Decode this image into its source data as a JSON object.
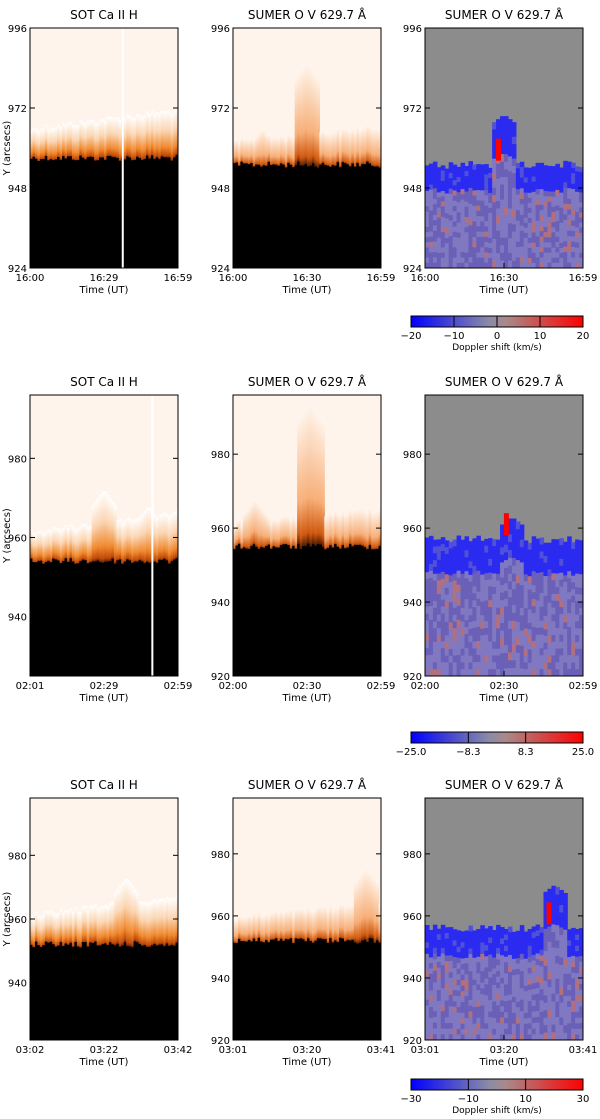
{
  "figure": {
    "colors": {
      "frame": "#000000",
      "background": "#ffffff",
      "doppler_blue": "#0000ff",
      "doppler_red": "#ff0000",
      "doppler_gray": "#8c8c8c",
      "intensity_dark": "#000000",
      "intensity_mid": "#e66a10",
      "intensity_light": "#fff4ec"
    }
  },
  "rows": [
    {
      "panels": [
        {
          "kind": "sot",
          "title": "SOT Ca II H",
          "ylabel": "Y (arcsecs)",
          "xlabel": "Time (UT)",
          "xticks": [
            "16:00",
            "16:29",
            "16:59"
          ],
          "yticks": [
            "924",
            "948",
            "972",
            "996"
          ],
          "chart_data": {
            "type": "heatmap",
            "ylim": [
              924,
              996
            ],
            "limb_y": 957,
            "jets": [
              {
                "t": 0.45,
                "peak_y": 965
              }
            ],
            "gap_t": 0.62
          }
        },
        {
          "kind": "sumer",
          "title": "SUMER O V 629.7 Å",
          "xlabel": "Time (UT)",
          "xticks": [
            "16:00",
            "16:30",
            "16:59"
          ],
          "yticks": [
            "924",
            "948",
            "972",
            "996"
          ],
          "chart_data": {
            "type": "heatmap",
            "ylim": [
              924,
              996
            ],
            "limb_y": 955,
            "jets": [
              {
                "t": 0.5,
                "peak_y": 986
              },
              {
                "t": 0.2,
                "peak_y": 966
              }
            ]
          }
        },
        {
          "kind": "doppler",
          "title": "SUMER O V 629.7 Å",
          "xlabel": "Time (UT)",
          "xticks": [
            "16:00",
            "16:30",
            "16:59"
          ],
          "yticks": [
            "924",
            "948",
            "972",
            "996"
          ],
          "chart_data": {
            "type": "heatmap",
            "ylim": [
              924,
              996
            ],
            "limb_y": 955,
            "bumps": [
              {
                "t": 0.5,
                "peak_y": 970
              }
            ]
          }
        }
      ],
      "colorbar": {
        "ticks": [
          "−20",
          "−10",
          "0",
          "10",
          "20"
        ],
        "label": "Doppler shift (km/s)",
        "range": [
          -20,
          20
        ]
      }
    },
    {
      "panels": [
        {
          "kind": "sot",
          "title": "SOT Ca II H",
          "ylabel": "Y (arcsecs)",
          "xlabel": "Time (UT)",
          "xticks": [
            "02:01",
            "02:29",
            "02:59"
          ],
          "yticks": [
            "940",
            "960",
            "980"
          ],
          "chart_data": {
            "type": "heatmap",
            "ylim": [
              925,
              996
            ],
            "limb_y": 954,
            "jets": [
              {
                "t": 0.5,
                "peak_y": 972
              },
              {
                "t": 0.8,
                "peak_y": 968
              }
            ],
            "gap_t": 0.82
          }
        },
        {
          "kind": "sumer",
          "title": "SUMER O V 629.7 Å",
          "xlabel": "Time (UT)",
          "xticks": [
            "02:00",
            "02:30",
            "02:59"
          ],
          "yticks": [
            "920",
            "940",
            "960",
            "980"
          ],
          "chart_data": {
            "type": "heatmap",
            "ylim": [
              920,
              996
            ],
            "limb_y": 955,
            "jets": [
              {
                "t": 0.52,
                "peak_y": 994
              },
              {
                "t": 0.15,
                "peak_y": 968
              }
            ]
          }
        },
        {
          "kind": "doppler",
          "title": "SUMER O V 629.7 Å",
          "xlabel": "Time (UT)",
          "xticks": [
            "02:00",
            "02:30",
            "02:59"
          ],
          "yticks": [
            "920",
            "940",
            "960",
            "980"
          ],
          "chart_data": {
            "type": "heatmap",
            "ylim": [
              920,
              996
            ],
            "limb_y": 957,
            "bumps": [
              {
                "t": 0.55,
                "peak_y": 963
              }
            ]
          }
        }
      ],
      "colorbar": {
        "ticks": [
          "−25.0",
          "−8.3",
          "8.3",
          "25.0"
        ],
        "label": "",
        "range": [
          -25,
          25
        ]
      }
    },
    {
      "panels": [
        {
          "kind": "sot",
          "title": "SOT Ca II H",
          "ylabel": "Y (arcsecs)",
          "xlabel": "Time (UT)",
          "xticks": [
            "03:02",
            "03:22",
            "03:42"
          ],
          "yticks": [
            "940",
            "960",
            "980"
          ],
          "chart_data": {
            "type": "heatmap",
            "ylim": [
              922,
              998
            ],
            "limb_y": 952,
            "jets": [
              {
                "t": 0.65,
                "peak_y": 973
              },
              {
                "t": 0.6,
                "peak_y": 968
              }
            ]
          }
        },
        {
          "kind": "sumer",
          "title": "SUMER O V 629.7 Å",
          "xlabel": "Time (UT)",
          "xticks": [
            "03:01",
            "03:20",
            "03:41"
          ],
          "yticks": [
            "920",
            "940",
            "960",
            "980"
          ],
          "chart_data": {
            "type": "heatmap",
            "ylim": [
              920,
              998
            ],
            "limb_y": 952,
            "jets": [
              {
                "t": 0.9,
                "peak_y": 976
              }
            ]
          }
        },
        {
          "kind": "doppler",
          "title": "SUMER O V 629.7 Å",
          "xlabel": "Time (UT)",
          "xticks": [
            "03:01",
            "03:20",
            "03:41"
          ],
          "yticks": [
            "920",
            "940",
            "960",
            "980"
          ],
          "chart_data": {
            "type": "heatmap",
            "ylim": [
              920,
              998
            ],
            "limb_y": 956,
            "bumps": [
              {
                "t": 0.82,
                "peak_y": 970
              }
            ]
          }
        }
      ],
      "colorbar": {
        "ticks": [
          "−30",
          "−10",
          "10",
          "30"
        ],
        "label": "Doppler shift (km/s)",
        "range": [
          -30,
          30
        ]
      }
    }
  ]
}
